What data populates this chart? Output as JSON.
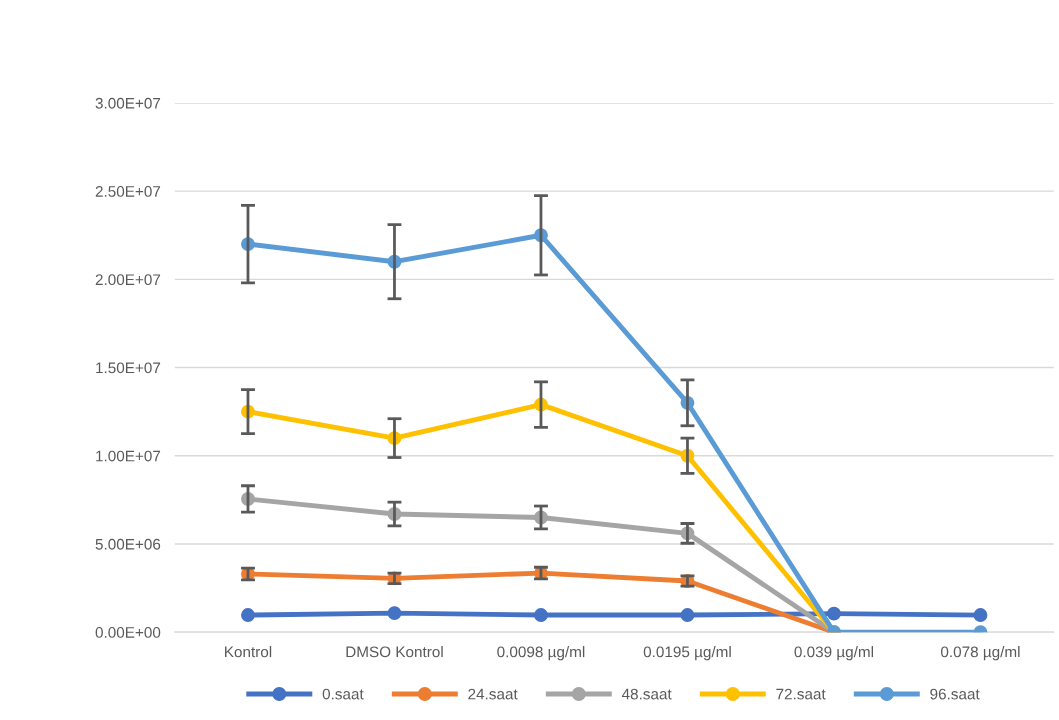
{
  "chart_data": {
    "type": "line",
    "categories": [
      "Kontrol",
      "DMSO Kontrol",
      "0.0098 µg/ml",
      "0.0195 µg/ml",
      "0.039 µg/ml",
      "0.078 µg/ml"
    ],
    "series": [
      {
        "name": "0.saat",
        "color": "#4472c4",
        "values": [
          970000,
          1080000,
          970000,
          970000,
          1050000,
          970000
        ]
      },
      {
        "name": "24.saat",
        "color": "#ed7d31",
        "values": [
          3300000,
          3050000,
          3350000,
          2900000,
          0,
          null
        ],
        "errors": [
          330000,
          300000,
          330000,
          290000,
          null,
          null
        ]
      },
      {
        "name": "48.saat",
        "color": "#a5a5a5",
        "values": [
          7550000,
          6700000,
          6500000,
          5600000,
          0,
          null
        ],
        "errors": [
          750000,
          670000,
          650000,
          560000,
          null,
          null
        ]
      },
      {
        "name": "72.saat",
        "color": "#ffc000",
        "values": [
          12500000,
          11000000,
          12900000,
          10000000,
          0,
          null
        ],
        "errors": [
          1250000,
          1100000,
          1290000,
          1000000,
          null,
          null
        ]
      },
      {
        "name": "96.saat",
        "color": "#5b9bd5",
        "values": [
          22000000,
          21000000,
          22500000,
          13000000,
          0,
          0
        ],
        "errors": [
          2200000,
          2100000,
          2250000,
          1300000,
          null,
          null
        ]
      }
    ],
    "ylim": [
      0,
      30000000
    ],
    "yticks": [
      {
        "value": 0,
        "label": "0.00E+00"
      },
      {
        "value": 5000000,
        "label": "5.00E+06"
      },
      {
        "value": 10000000,
        "label": "1.00E+07"
      },
      {
        "value": 15000000,
        "label": "1.50E+07"
      },
      {
        "value": 20000000,
        "label": "2.00E+07"
      },
      {
        "value": 25000000,
        "label": "2.50E+07"
      },
      {
        "value": 30000000,
        "label": "3.00E+07"
      }
    ],
    "grid": "y",
    "legend": "bottom",
    "marker": "circle",
    "line_style": "solid"
  }
}
